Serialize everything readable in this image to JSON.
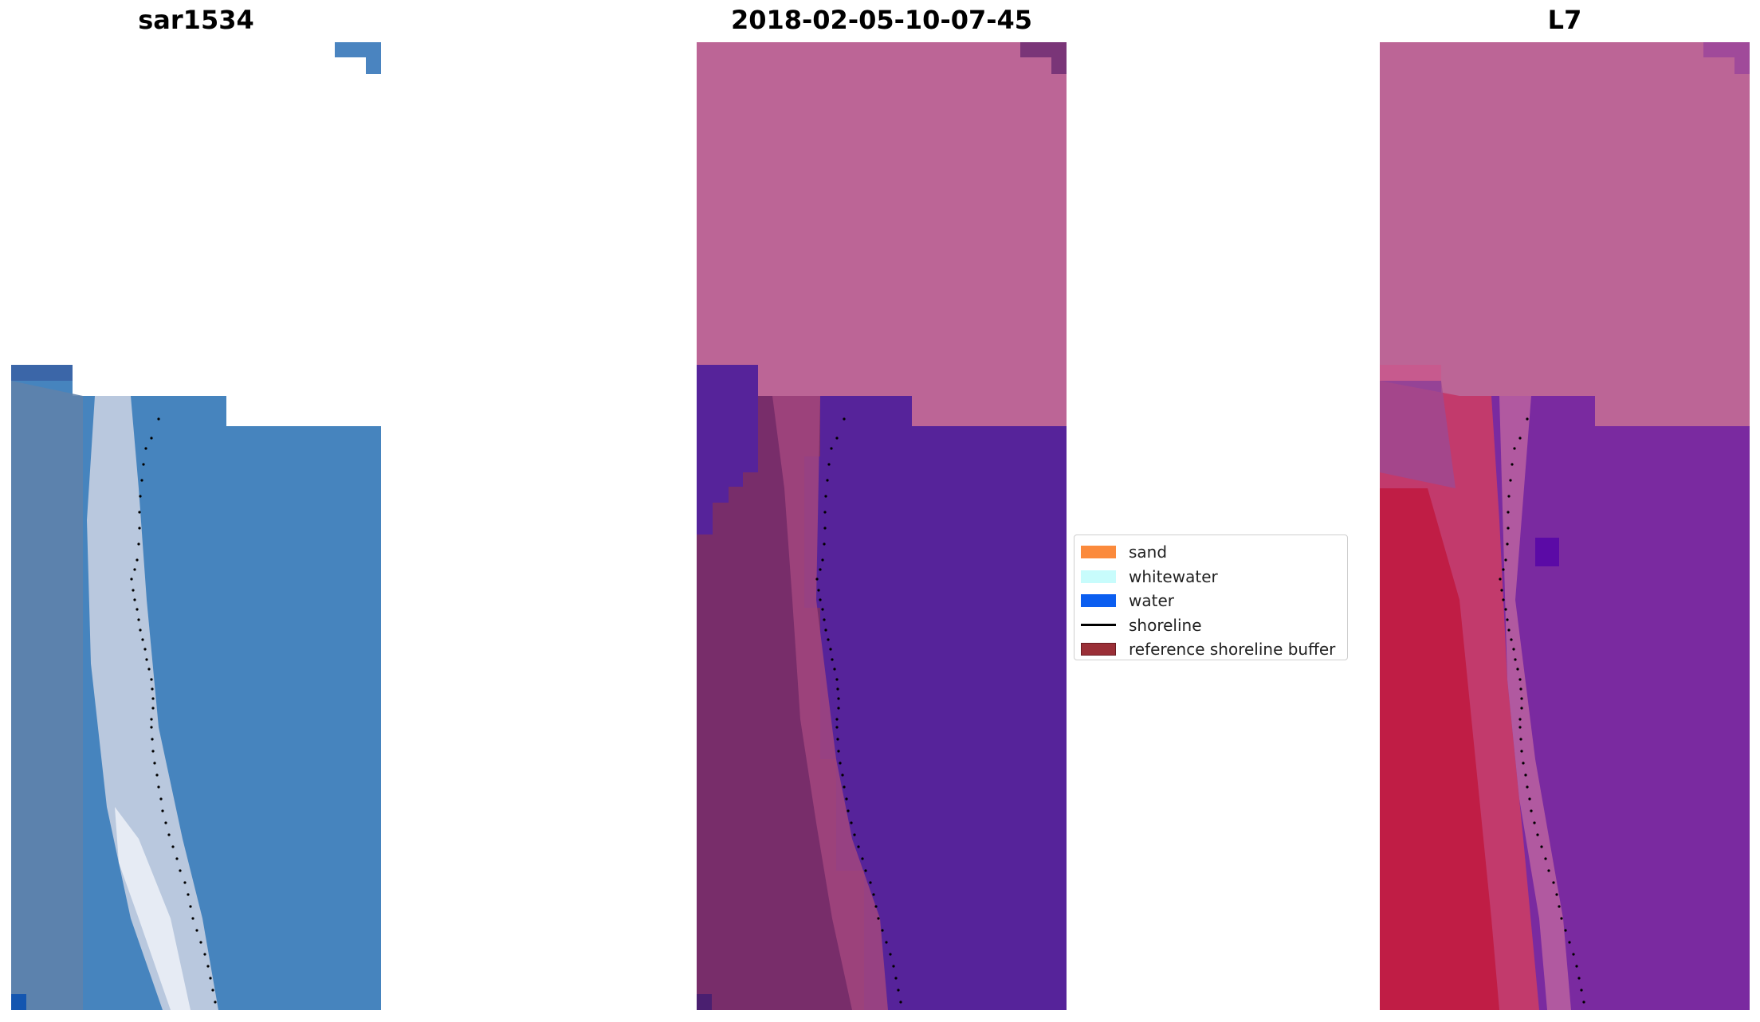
{
  "panels": [
    {
      "title": "sar1534",
      "image": "rgb-image"
    },
    {
      "title": "2018-02-05-10-07-45",
      "image": "classified-image"
    },
    {
      "title": "L7",
      "image": "index-image"
    }
  ],
  "legend": {
    "items": [
      {
        "label": "sand",
        "color": "#fb8a3c",
        "kind": "patch"
      },
      {
        "label": "whitewater",
        "color": "#c8fcfc",
        "kind": "patch"
      },
      {
        "label": "water",
        "color": "#0b5ef0",
        "kind": "patch"
      },
      {
        "label": "shoreline",
        "color": "#000000",
        "kind": "line"
      },
      {
        "label": "reference shoreline buffer",
        "color": "#9a2f37",
        "kind": "patch"
      }
    ]
  },
  "colors": {
    "water_rgb": "#4582bb",
    "whitewater_rgb": "#eef2f8",
    "nodata_classified": "#bc6596",
    "water_classified": "#56239a",
    "beach_classified": "#782d6a",
    "nodata_index": "#bc6596",
    "sand_index": "#c0193e",
    "water_index": "#7a2aa0"
  }
}
